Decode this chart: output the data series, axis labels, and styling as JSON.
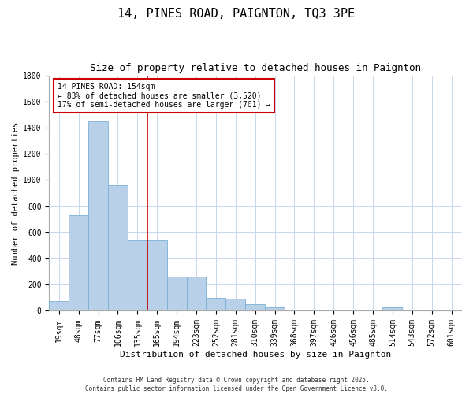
{
  "title": "14, PINES ROAD, PAIGNTON, TQ3 3PE",
  "subtitle": "Size of property relative to detached houses in Paignton",
  "xlabel": "Distribution of detached houses by size in Paignton",
  "ylabel": "Number of detached properties",
  "categories": [
    "19sqm",
    "48sqm",
    "77sqm",
    "106sqm",
    "135sqm",
    "165sqm",
    "194sqm",
    "223sqm",
    "252sqm",
    "281sqm",
    "310sqm",
    "339sqm",
    "368sqm",
    "397sqm",
    "426sqm",
    "456sqm",
    "485sqm",
    "514sqm",
    "543sqm",
    "572sqm",
    "601sqm"
  ],
  "values": [
    75,
    730,
    1450,
    960,
    540,
    540,
    260,
    260,
    100,
    95,
    50,
    25,
    0,
    0,
    0,
    0,
    0,
    25,
    0,
    0,
    0
  ],
  "bar_color": "#b8d0e8",
  "bar_edge_color": "#7aafd4",
  "grid_color": "#c8d8ec",
  "background_color": "#ffffff",
  "vline_x": 4.5,
  "vline_color": "#cc0000",
  "annotation_text": "14 PINES ROAD: 154sqm\n← 83% of detached houses are smaller (3,520)\n17% of semi-detached houses are larger (701) →",
  "annotation_box_color": "#cc0000",
  "annotation_text_color": "#000000",
  "ylim": [
    0,
    1800
  ],
  "yticks": [
    0,
    200,
    400,
    600,
    800,
    1000,
    1200,
    1400,
    1600,
    1800
  ],
  "footer": "Contains HM Land Registry data © Crown copyright and database right 2025.\nContains public sector information licensed under the Open Government Licence v3.0.",
  "title_fontsize": 11,
  "subtitle_fontsize": 9,
  "xlabel_fontsize": 8,
  "ylabel_fontsize": 7.5,
  "tick_fontsize": 7,
  "annotation_fontsize": 7,
  "footer_fontsize": 5.5
}
